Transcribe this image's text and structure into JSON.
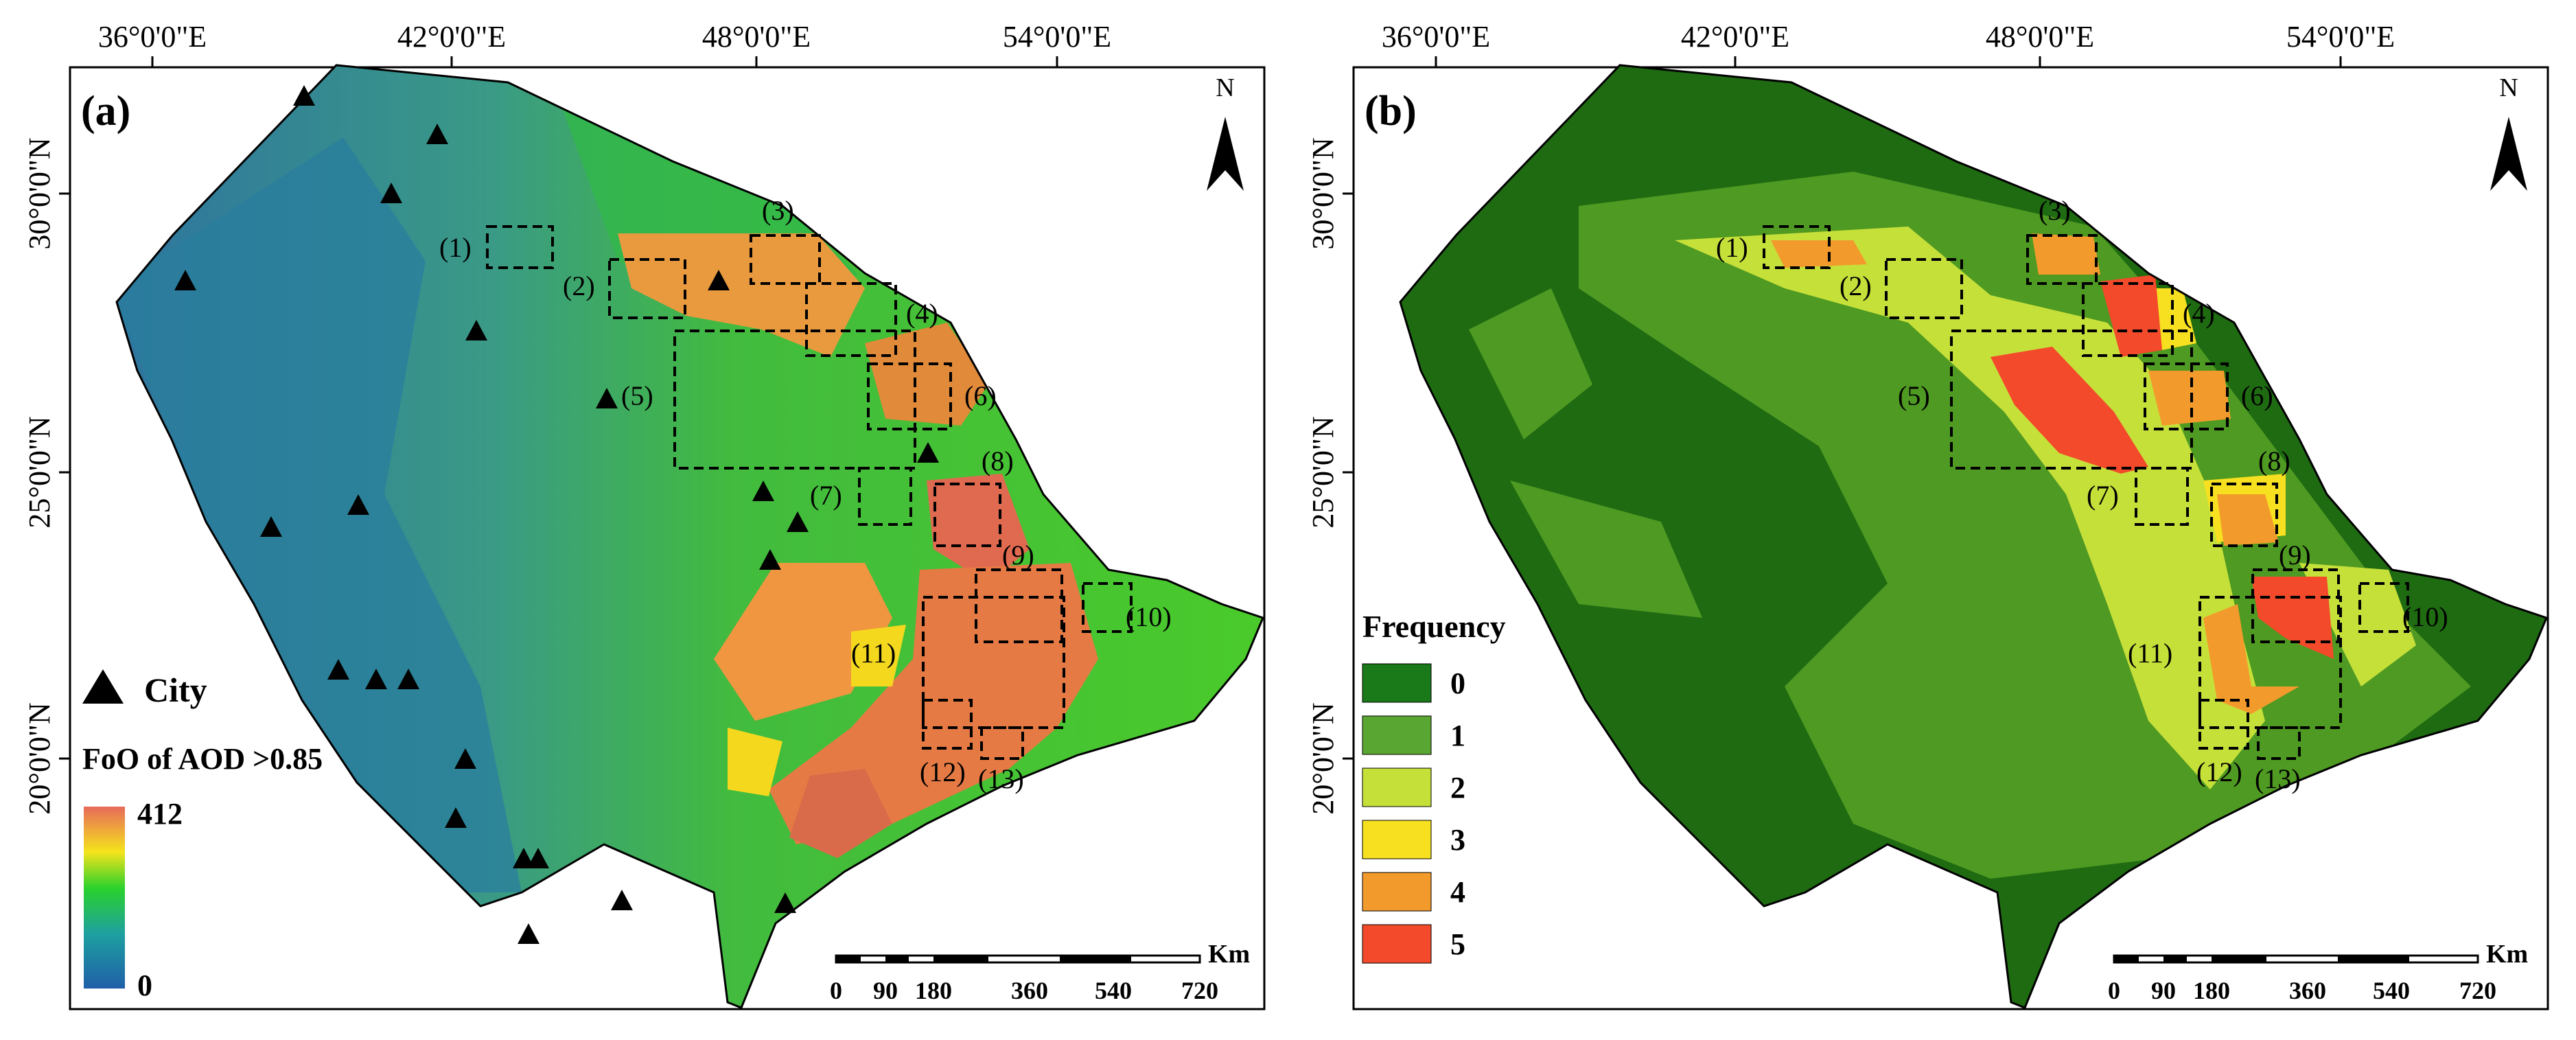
{
  "panels": [
    {
      "id": "a",
      "panel_label": "(a)",
      "top_ticks": [
        "36°0'0\"E",
        "42°0'0\"E",
        "48°0'0\"E",
        "54°0'0\"E"
      ],
      "left_ticks": [
        "30°0'0\"N",
        "25°0'0\"N",
        "20°0'0\"N"
      ],
      "north": "N",
      "legend_city_label": "City",
      "legend_title": "FoO of AOD >0.85",
      "legend_max": "412",
      "legend_min": "0",
      "scale_unit": "Km",
      "scale_ticks": [
        "0",
        "90",
        "180",
        "360",
        "540",
        "720"
      ],
      "regions": [
        "(1)",
        "(2)",
        "(3)",
        "(4)",
        "(5)",
        "(6)",
        "(7)",
        "(8)",
        "(9)",
        "(10)",
        "(11)",
        "(12)",
        "(13)"
      ]
    },
    {
      "id": "b",
      "panel_label": "(b)",
      "top_ticks": [
        "36°0'0\"E",
        "42°0'0\"E",
        "48°0'0\"E",
        "54°0'0\"E"
      ],
      "left_ticks": [
        "30°0'0\"N",
        "25°0'0\"N",
        "20°0'0\"N"
      ],
      "north": "N",
      "legend_title": "Frequency",
      "legend_classes": [
        {
          "label": "0",
          "color": "#1a7a1a"
        },
        {
          "label": "1",
          "color": "#5aa632"
        },
        {
          "label": "2",
          "color": "#c6e03a"
        },
        {
          "label": "3",
          "color": "#f6e020"
        },
        {
          "label": "4",
          "color": "#f39a2c"
        },
        {
          "label": "5",
          "color": "#f24a2a"
        }
      ],
      "scale_unit": "Km",
      "scale_ticks": [
        "0",
        "90",
        "180",
        "360",
        "540",
        "720"
      ],
      "regions": [
        "(1)",
        "(2)",
        "(3)",
        "(4)",
        "(5)",
        "(6)",
        "(7)",
        "(8)",
        "(9)",
        "(10)",
        "(11)",
        "(12)",
        "(13)"
      ]
    }
  ],
  "colors": {
    "aod_low": "#2c6ea6",
    "aod_mid": "#22c030",
    "aod_high": "#e8634a",
    "freq_base": "#1f6b12"
  }
}
